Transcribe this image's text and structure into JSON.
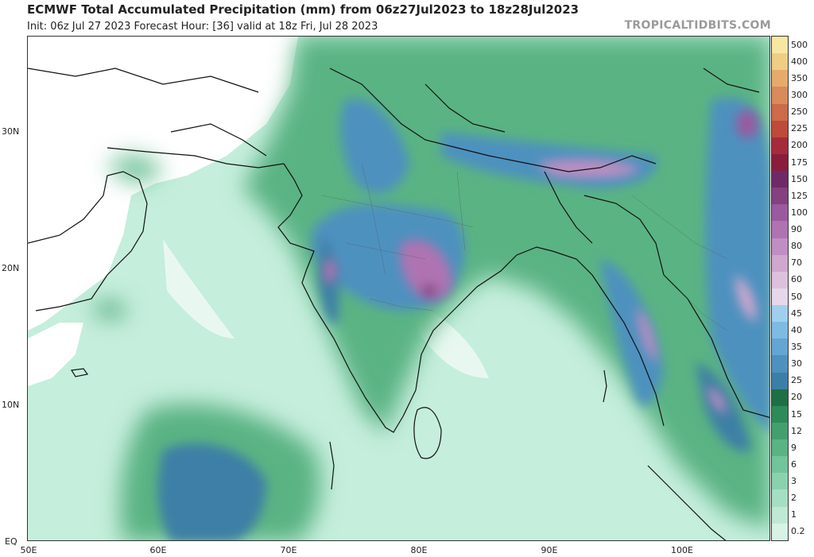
{
  "header": {
    "title": "ECMWF Total Accumulated Precipitation (mm) from 06z27Jul2023 to 18z28Jul2023",
    "subtitle": "Init: 06z Jul 27 2023   Forecast Hour: [36]   valid at 18z Fri, Jul 28 2023",
    "brand": "TROPICALTIDBITS.COM"
  },
  "axes": {
    "lat_labels": [
      "30N",
      "20N",
      "10N",
      "EQ"
    ],
    "lon_labels": [
      "50E",
      "60E",
      "70E",
      "80E",
      "90E",
      "100E"
    ]
  },
  "colorbar": {
    "levels": [
      "0.2",
      "1",
      "2",
      "3",
      "6",
      "9",
      "12",
      "15",
      "20",
      "25",
      "30",
      "35",
      "40",
      "45",
      "50",
      "60",
      "70",
      "80",
      "90",
      "100",
      "125",
      "150",
      "175",
      "200",
      "225",
      "250",
      "300",
      "350",
      "400",
      "500"
    ],
    "colors": [
      "#d7f3e6",
      "#bfe9d5",
      "#a5dfc3",
      "#8ad2ad",
      "#72c49a",
      "#5ab383",
      "#43a06e",
      "#2f8a5a",
      "#1e6f45",
      "#3c7fa6",
      "#4e91bf",
      "#63a6d3",
      "#7ebbe3",
      "#a0cfee",
      "#e6d8ea",
      "#dcc1dc",
      "#cfa7cf",
      "#c08ec3",
      "#af73b2",
      "#9a5a9f",
      "#84407f",
      "#6e2a68",
      "#8a1d3c",
      "#a52b3a",
      "#bd4a3a",
      "#cc6a49",
      "#d98a5a",
      "#e6ab6c",
      "#f0cd85",
      "#f7e7a3"
    ]
  },
  "map": {
    "region": "South Asia / Northern Indian Ocean",
    "ocean_color": "#c5eedc",
    "land_color": "#ffffff"
  }
}
